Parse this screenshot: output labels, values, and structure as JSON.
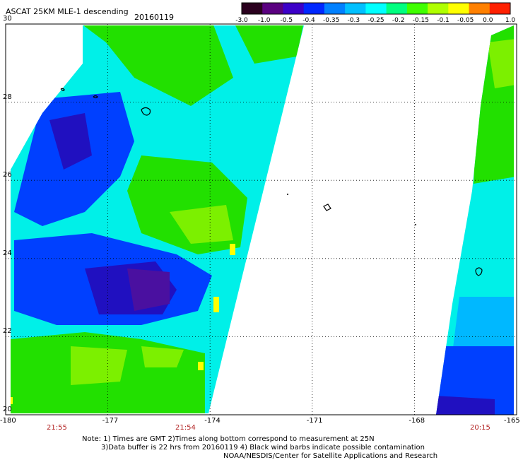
{
  "header": {
    "title": "ASCAT 25KM MLE-1 descending",
    "date": "20160119"
  },
  "colorbar": {
    "labels": [
      "-3.0",
      "-1.0",
      "-0.5",
      "-0.4",
      "-0.35",
      "-0.3",
      "-0.25",
      "-0.2",
      "-0.15",
      "-0.1",
      "-0.05",
      "0.0",
      "1.0"
    ],
    "colors": [
      "#2a001e",
      "#5a0080",
      "#3c00c8",
      "#0028ff",
      "#0080ff",
      "#00c0ff",
      "#00ffff",
      "#00ff80",
      "#40ff00",
      "#b0ff00",
      "#ffff00",
      "#ff8000",
      "#ff2000"
    ]
  },
  "map": {
    "lon_labels": [
      "-180",
      "-177",
      "-174",
      "-171",
      "-168",
      "-165"
    ],
    "lat_labels": [
      "30",
      "28",
      "26",
      "24",
      "22",
      "20"
    ],
    "lon_range": [
      -180,
      -165
    ],
    "lat_range": [
      20,
      30
    ],
    "grid": true,
    "times": [
      "21:55",
      "21:54",
      "20:15"
    ],
    "colors": {
      "green": "#22e000",
      "light_green": "#7cf000",
      "cyan": "#00f0e8",
      "light_blue": "#00b8ff",
      "blue": "#0040ff",
      "dark_blue": "#2010c0",
      "purple": "#4a10a0",
      "yellow": "#ffff00"
    }
  },
  "notes": {
    "line1": "Note: 1) Times are GMT 2)Times along bottom correspond to measurement at 25N",
    "line2": "3)Data buffer is 22 hrs from 20160119 4) Black wind barbs indicate possible contamination",
    "line3": "NOAA/NESDIS/Center for Satellite Applications and Research"
  }
}
